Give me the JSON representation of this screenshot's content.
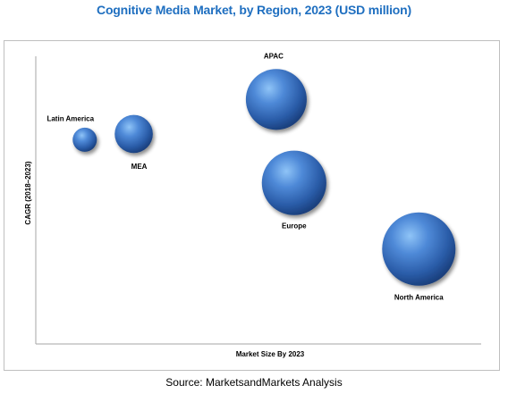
{
  "title": "Cognitive Media Market, by Region, 2023 (USD million)",
  "source": "Source: MarketsandMarkets Analysis",
  "chart_data": {
    "type": "scatter",
    "subtype": "bubble",
    "title": "Cognitive Media Market, by Region, 2023 (USD million)",
    "xlabel": "Market Size By 2023",
    "ylabel": "CAGR (2018–2023)",
    "x_ticks_shown": false,
    "y_ticks_shown": false,
    "grid": false,
    "legend": "none",
    "bubble_color": "#3d76c6",
    "points": [
      {
        "label": "Latin America",
        "x": 0.11,
        "y": 0.71,
        "size": 0.33
      },
      {
        "label": "MEA",
        "x": 0.22,
        "y": 0.73,
        "size": 0.52
      },
      {
        "label": "APAC",
        "x": 0.54,
        "y": 0.85,
        "size": 0.83
      },
      {
        "label": "Europe",
        "x": 0.58,
        "y": 0.56,
        "size": 0.88
      },
      {
        "label": "North America",
        "x": 0.86,
        "y": 0.33,
        "size": 1.0
      }
    ]
  }
}
